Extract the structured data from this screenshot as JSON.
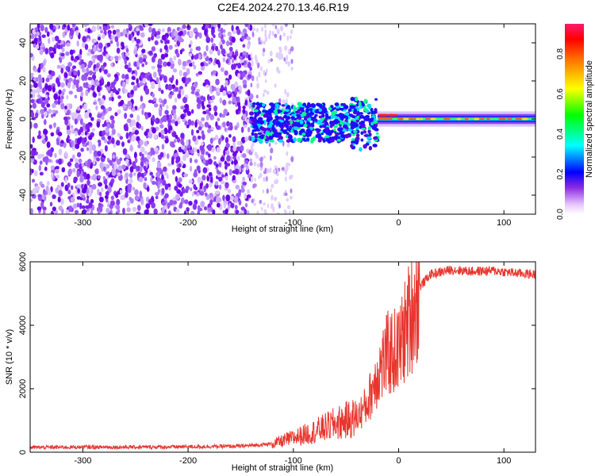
{
  "title": "C2E4.2024.270.13.46.R19",
  "charts": {
    "spectrogram": {
      "xlabel": "Height of straight line (km)",
      "ylabel": "Frequency (Hz)",
      "xticks": [
        -300,
        -200,
        -100,
        0,
        100
      ],
      "yticks": [
        -40,
        -20,
        0,
        20,
        40
      ]
    },
    "snr": {
      "xlabel": "Height of straight line (km)",
      "ylabel": "SNR (10 * v/v)",
      "xticks": [
        -300,
        -200,
        -100,
        0,
        100
      ],
      "yticks": [
        0,
        2000,
        4000,
        6000
      ]
    },
    "colorbar": {
      "label": "Normalized spectral amplitude",
      "ticks": [
        0.0,
        0.2,
        0.4,
        0.6,
        0.8
      ]
    }
  },
  "chart_data": [
    {
      "type": "heatmap",
      "xlabel": "Height of straight line (km)",
      "ylabel": "Frequency (Hz)",
      "xlim": [
        -350,
        130
      ],
      "ylim": [
        -50,
        50
      ],
      "colorbar": {
        "label": "Normalized spectral amplitude",
        "range": [
          0.0,
          0.95
        ]
      },
      "regions": [
        {
          "x_range": [
            -350,
            -140
          ],
          "freq_range": [
            -50,
            50
          ],
          "amplitude": "low (0.0-0.2), scattered noise"
        },
        {
          "x_range": [
            -140,
            -100
          ],
          "freq_range": [
            -50,
            50
          ],
          "amplitude": "very low, sparse"
        },
        {
          "x_range": [
            -140,
            -20
          ],
          "freq_range": [
            -15,
            10
          ],
          "amplitude": "0.2-0.5 band"
        },
        {
          "x_range": [
            -20,
            130
          ],
          "freq_range": [
            -3,
            3
          ],
          "amplitude": "0.5-0.95 narrow carrier near 0 Hz"
        }
      ]
    },
    {
      "type": "line",
      "xlabel": "Height of straight line (km)",
      "ylabel": "SNR (10 * v/v)",
      "xlim": [
        -350,
        130
      ],
      "ylim": [
        0,
        6000
      ],
      "series": [
        {
          "color": "#e8362e",
          "x": [
            -350,
            -300,
            -250,
            -200,
            -150,
            -120,
            -100,
            -80,
            -60,
            -40,
            -30,
            -20,
            -10,
            0,
            10,
            20,
            30,
            50,
            70,
            90,
            110,
            130
          ],
          "values": [
            150,
            160,
            160,
            170,
            190,
            260,
            450,
            650,
            900,
            1100,
            1500,
            2500,
            3100,
            3200,
            4200,
            5200,
            5600,
            5750,
            5700,
            5720,
            5650,
            5600
          ]
        }
      ]
    }
  ]
}
